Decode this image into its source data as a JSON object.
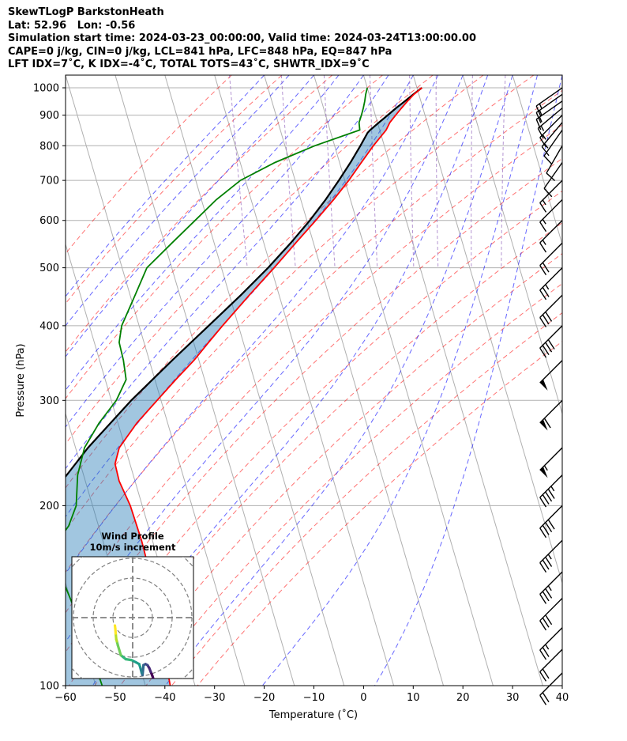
{
  "header": {
    "line1": "SkewTLogP BarkstonHeath",
    "line2": "Lat: 52.96   Lon: -0.56",
    "line3": "Simulation start time: 2024-03-23_00:00:00, Valid time: 2024-03-24T13:00:00.00",
    "line4": "CAPE=0 j/kg, CIN=0 j/kg, LCL=841 hPa, LFC=848 hPa, EQ=847 hPa",
    "line5": "LFT IDX=7˚C, K IDX=-4˚C, TOTAL TOTS=43˚C, SHWTR_IDX=9˚C"
  },
  "chart_data": {
    "type": "line",
    "subtype": "skewt-logp",
    "xlabel": "Temperature (˚C)",
    "ylabel": "Pressure (hPa)",
    "xlim": [
      -60,
      40
    ],
    "ylim": [
      1050,
      100
    ],
    "yscale": "log",
    "grid": true,
    "xticks": [
      -60,
      -50,
      -40,
      -30,
      -20,
      -10,
      0,
      10,
      20,
      30,
      40
    ],
    "yticks": [
      1000,
      900,
      800,
      700,
      600,
      500,
      400,
      300,
      200,
      100
    ],
    "colors": {
      "temperature": "#ff0000",
      "dewpoint": "#008000",
      "parcel": "#000000",
      "cape_fill": "#1f77b4",
      "dry_adiabat": "#ff0000",
      "moist_adiabat": "#0000ff",
      "mixing_ratio": "#9467bd",
      "isotherm": "#808080"
    },
    "series": [
      {
        "key": "temperature",
        "p": [
          1000,
          975,
          950,
          925,
          900,
          875,
          850,
          800,
          750,
          700,
          650,
          600,
          550,
          500,
          450,
          400,
          375,
          350,
          325,
          300,
          275,
          250,
          235,
          220,
          200,
          175,
          150,
          125,
          100
        ],
        "t": [
          11.0,
          9.0,
          7.3,
          5.7,
          4.1,
          2.5,
          1.3,
          -2.2,
          -5.6,
          -9.2,
          -13.4,
          -18.2,
          -23.6,
          -29.4,
          -36.0,
          -43.2,
          -47.0,
          -51.0,
          -55.8,
          -60.8,
          -66.2,
          -71.2,
          -73.0,
          -73.2,
          -72.4,
          -72.2,
          -72.5,
          -73.7,
          -75.0
        ]
      },
      {
        "key": "dewpoint",
        "p": [
          1000,
          975,
          950,
          925,
          900,
          875,
          850,
          800,
          750,
          700,
          650,
          600,
          550,
          500,
          450,
          400,
          375,
          350,
          325,
          300,
          275,
          250,
          225,
          200,
          185,
          170,
          150,
          125,
          100
        ],
        "t": [
          0.0,
          -0.7,
          -1.3,
          -2.0,
          -2.8,
          -3.7,
          -4.0,
          -14.0,
          -23.0,
          -31.0,
          -37.0,
          -42.5,
          -48.5,
          -55.0,
          -59.0,
          -63.5,
          -65.0,
          -65.2,
          -65.8,
          -69.0,
          -73.8,
          -78.2,
          -81.2,
          -83.3,
          -86.0,
          -90.5,
          -90.4,
          -89.3,
          -88.7
        ]
      },
      {
        "key": "parcel",
        "p": [
          1000,
          975,
          950,
          925,
          900,
          875,
          850,
          841,
          800,
          750,
          700,
          650,
          600,
          550,
          500,
          450,
          400,
          350,
          300,
          250,
          200,
          150,
          100
        ],
        "t": [
          11.0,
          8.9,
          6.8,
          4.6,
          2.5,
          0.3,
          -1.9,
          -2.6,
          -4.8,
          -7.8,
          -11.2,
          -15.0,
          -19.4,
          -24.6,
          -30.6,
          -37.7,
          -46.0,
          -55.4,
          -66.0,
          -77.5,
          -90.0,
          -103.5,
          -120.0
        ]
      }
    ],
    "wind_barbs": [
      {
        "p": 1000,
        "speed_kt": 15,
        "dir_deg": 235
      },
      {
        "p": 975,
        "speed_kt": 15,
        "dir_deg": 235
      },
      {
        "p": 950,
        "speed_kt": 15,
        "dir_deg": 235
      },
      {
        "p": 925,
        "speed_kt": 15,
        "dir_deg": 230
      },
      {
        "p": 900,
        "speed_kt": 15,
        "dir_deg": 225
      },
      {
        "p": 875,
        "speed_kt": 15,
        "dir_deg": 220
      },
      {
        "p": 850,
        "speed_kt": 10,
        "dir_deg": 215
      },
      {
        "p": 800,
        "speed_kt": 10,
        "dir_deg": 210
      },
      {
        "p": 750,
        "speed_kt": 10,
        "dir_deg": 215
      },
      {
        "p": 700,
        "speed_kt": 15,
        "dir_deg": 225
      },
      {
        "p": 650,
        "speed_kt": 15,
        "dir_deg": 225
      },
      {
        "p": 600,
        "speed_kt": 15,
        "dir_deg": 225
      },
      {
        "p": 550,
        "speed_kt": 20,
        "dir_deg": 225
      },
      {
        "p": 500,
        "speed_kt": 25,
        "dir_deg": 225
      },
      {
        "p": 450,
        "speed_kt": 30,
        "dir_deg": 225
      },
      {
        "p": 400,
        "speed_kt": 40,
        "dir_deg": 225
      },
      {
        "p": 350,
        "speed_kt": 50,
        "dir_deg": 225
      },
      {
        "p": 300,
        "speed_kt": 60,
        "dir_deg": 225
      },
      {
        "p": 250,
        "speed_kt": 55,
        "dir_deg": 225
      },
      {
        "p": 225,
        "speed_kt": 45,
        "dir_deg": 225
      },
      {
        "p": 200,
        "speed_kt": 40,
        "dir_deg": 225
      },
      {
        "p": 175,
        "speed_kt": 35,
        "dir_deg": 225
      },
      {
        "p": 155,
        "speed_kt": 35,
        "dir_deg": 225
      },
      {
        "p": 140,
        "speed_kt": 30,
        "dir_deg": 225
      },
      {
        "p": 125,
        "speed_kt": 25,
        "dir_deg": 225
      },
      {
        "p": 115,
        "speed_kt": 20,
        "dir_deg": 225
      },
      {
        "p": 105,
        "speed_kt": 20,
        "dir_deg": 225
      }
    ],
    "hodograph": {
      "title_line1": "Wind Profile",
      "title_line2": "10m/s increment",
      "ring_step_ms": 10,
      "rings": 4,
      "u": [
        11.0,
        10.5,
        10.0,
        9.2,
        8.4,
        7.5,
        6.5,
        5.5,
        5.0,
        4.6,
        4.2,
        3.8,
        3.3,
        1.5,
        -0.5,
        -3.5,
        -6.0,
        -7.5,
        -8.0,
        -8.3,
        -8.6,
        -8.8,
        -9.0
      ],
      "v": [
        -33.0,
        -31.0,
        -29.5,
        -27.5,
        -25.5,
        -24.0,
        -23.5,
        -24.0,
        -29.0,
        -28.0,
        -26.5,
        -25.0,
        -23.5,
        -22.5,
        -21.5,
        -21.0,
        -19.0,
        -14.0,
        -12.0,
        -11.0,
        -8.0,
        -5.5,
        -4.0
      ],
      "colormap": "viridis"
    }
  }
}
